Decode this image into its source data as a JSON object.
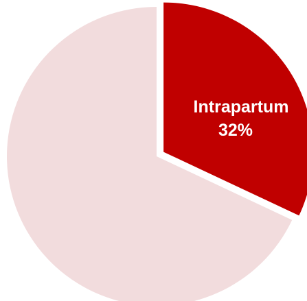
{
  "chart_data": {
    "type": "pie",
    "slices": [
      {
        "label": "Intrapartum",
        "value": 32,
        "value_label": "32%",
        "color": "#c00000",
        "exploded": true
      },
      {
        "label": "",
        "value": 68,
        "value_label": "",
        "color": "#f2dcdd",
        "exploded": false
      }
    ]
  }
}
